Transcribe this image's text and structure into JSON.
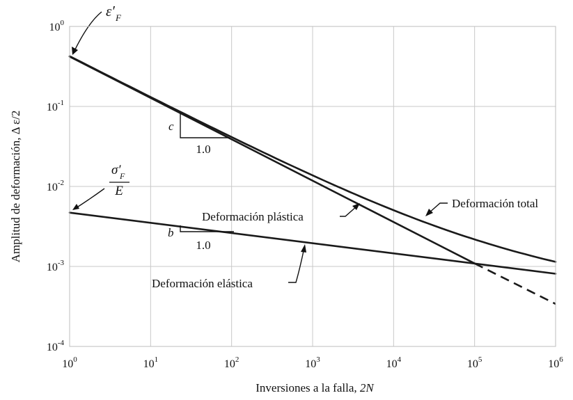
{
  "chart_data": {
    "type": "line",
    "xscale": "log",
    "yscale": "log",
    "xlim": [
      1,
      1000000
    ],
    "ylim": [
      0.0001,
      1
    ],
    "grid": true,
    "xlabel_prefix": "Inversiones a la falla, ",
    "xlabel_var": "2N",
    "ylabel": "Amplitud de deformación, Δ ε/2",
    "x_ticks": [
      {
        "base": "10",
        "exp": "0",
        "value": 1
      },
      {
        "base": "10",
        "exp": "1",
        "value": 10
      },
      {
        "base": "10",
        "exp": "2",
        "value": 100
      },
      {
        "base": "10",
        "exp": "3",
        "value": 1000
      },
      {
        "base": "10",
        "exp": "4",
        "value": 10000
      },
      {
        "base": "10",
        "exp": "5",
        "value": 100000
      },
      {
        "base": "10",
        "exp": "6",
        "value": 1000000
      }
    ],
    "y_ticks": [
      {
        "base": "10",
        "exp": "0",
        "value": 1
      },
      {
        "base": "10",
        "exp": "-1",
        "value": 0.1
      },
      {
        "base": "10",
        "exp": "-2",
        "value": 0.01
      },
      {
        "base": "10",
        "exp": "-3",
        "value": 0.001
      },
      {
        "base": "10",
        "exp": "-4",
        "value": 0.0001
      }
    ],
    "series": [
      {
        "name": "Deformación plástica",
        "x": [
          1,
          100000
        ],
        "y": [
          0.42,
          0.00109
        ],
        "dashed_extension": {
          "x": [
            100000,
            1000000
          ],
          "y": [
            0.00109,
            0.00034
          ]
        }
      },
      {
        "name": "Deformación elástica",
        "x": [
          1,
          1000000
        ],
        "y": [
          0.0047,
          0.00081
        ]
      },
      {
        "name": "Deformación total",
        "x": [
          1,
          1000000
        ],
        "y": [
          0.4247,
          0.00115
        ]
      }
    ],
    "annotations": {
      "epsilon_label": "ε′",
      "epsilon_sub": "F",
      "sigma_label": "σ′",
      "sigma_sub": "F",
      "sigma_den": "E",
      "slope_c": "c",
      "slope_b": "b",
      "slope_run_c": "1.0",
      "slope_run_b": "1.0"
    }
  }
}
